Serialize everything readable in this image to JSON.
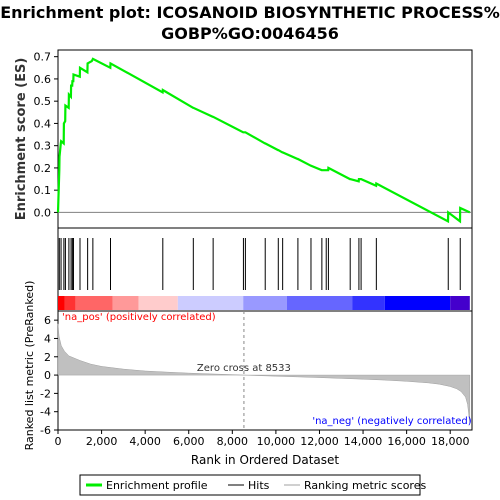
{
  "title_lines": [
    "Enrichment plot: ICOSANOID BIOSYNTHETIC PROCESS%",
    "GOBP%GO:0046456"
  ],
  "chart_data": {
    "type": "line",
    "x_label": "Rank in Ordered Dataset",
    "x_ticks": [
      0,
      2000,
      4000,
      6000,
      8000,
      10000,
      12000,
      14000,
      16000,
      18000
    ],
    "x_tick_labels": [
      "0",
      "2,000",
      "4,000",
      "6,000",
      "8,000",
      "10,000",
      "12,000",
      "14,000",
      "16,000",
      "18,000"
    ],
    "x_range": [
      0,
      19000
    ],
    "enrichment": {
      "ylabel": "Enrichment score (ES)",
      "ylim": [
        -0.07,
        0.73
      ],
      "y_ticks": [
        0.0,
        0.1,
        0.2,
        0.3,
        0.4,
        0.5,
        0.6,
        0.7
      ],
      "y_tick_labels": [
        "0.0",
        "0.1",
        "0.2",
        "0.3",
        "0.4",
        "0.5",
        "0.6",
        "0.7"
      ],
      "color": "#00ee00",
      "x": [
        0,
        60,
        70,
        130,
        140,
        260,
        270,
        330,
        340,
        490,
        500,
        590,
        600,
        650,
        660,
        700,
        710,
        1000,
        1010,
        1350,
        1360,
        1550,
        1600,
        2400,
        2410,
        4800,
        4810,
        6200,
        6210,
        7100,
        7120,
        8500,
        8510,
        8600,
        9500,
        9510,
        10100,
        10110,
        10300,
        10310,
        11000,
        11010,
        11600,
        11610,
        12100,
        12110,
        12300,
        12310,
        12400,
        12410,
        13400,
        13410,
        13800,
        13810,
        13900,
        13910,
        14600,
        14610,
        17900,
        17910,
        18450,
        18460,
        18900
      ],
      "y": [
        0.0,
        0.19,
        0.25,
        0.31,
        0.32,
        0.31,
        0.4,
        0.41,
        0.48,
        0.47,
        0.53,
        0.52,
        0.57,
        0.57,
        0.59,
        0.59,
        0.62,
        0.61,
        0.65,
        0.63,
        0.67,
        0.68,
        0.69,
        0.65,
        0.67,
        0.54,
        0.55,
        0.47,
        0.47,
        0.43,
        0.43,
        0.36,
        0.36,
        0.36,
        0.31,
        0.31,
        0.28,
        0.28,
        0.27,
        0.27,
        0.24,
        0.24,
        0.21,
        0.21,
        0.19,
        0.19,
        0.19,
        0.19,
        0.19,
        0.2,
        0.15,
        0.15,
        0.14,
        0.15,
        0.15,
        0.15,
        0.12,
        0.13,
        -0.04,
        0.0,
        -0.04,
        0.02,
        0.0
      ]
    },
    "hits": {
      "legend_label": "Hits",
      "color": "#000000",
      "x": [
        60,
        140,
        270,
        340,
        500,
        600,
        660,
        710,
        1010,
        1360,
        1600,
        2410,
        4810,
        6210,
        7120,
        8510,
        8600,
        9510,
        10110,
        10310,
        11010,
        11610,
        12110,
        12310,
        12410,
        13410,
        13810,
        13910,
        14610,
        17910,
        18460
      ]
    },
    "heatmap_band": {
      "colors": [
        "#ff0000",
        "#ff3333",
        "#ff6666",
        "#ff9999",
        "#ffcccc",
        "#ccccff",
        "#9999ff",
        "#6666ff",
        "#3333ff",
        "#0000ff",
        "#4400cc"
      ],
      "segment_ends": [
        300,
        800,
        2500,
        3700,
        5500,
        8500,
        10500,
        13500,
        15000,
        18000,
        18900
      ]
    },
    "ranked_metric": {
      "ylabel": "Ranked list metric (PreRanked)",
      "ylim": [
        -6,
        7
      ],
      "y_ticks": [
        -6,
        -4,
        -2,
        0,
        2,
        4,
        6
      ],
      "y_tick_labels": [
        "-6",
        "-4",
        "-2",
        "0",
        "2",
        "4",
        "6"
      ],
      "x": [
        0,
        50,
        150,
        300,
        500,
        1000,
        1500,
        2000,
        3000,
        4000,
        5000,
        6000,
        7000,
        8000,
        8533,
        9000,
        10000,
        11000,
        12000,
        13000,
        14000,
        15000,
        16000,
        17000,
        17500,
        18000,
        18300,
        18500,
        18700,
        18800,
        18900
      ],
      "values": [
        5.6,
        4.2,
        3.2,
        2.6,
        2.1,
        1.6,
        1.2,
        0.95,
        0.65,
        0.45,
        0.32,
        0.22,
        0.13,
        0.05,
        0.0,
        -0.05,
        -0.12,
        -0.2,
        -0.28,
        -0.36,
        -0.45,
        -0.55,
        -0.68,
        -0.85,
        -1.0,
        -1.25,
        -1.5,
        -1.8,
        -2.4,
        -3.2,
        -5.3
      ],
      "fill_color": "#c0c0c0",
      "zero_cross_label": "Zero cross at 8533",
      "zero_cross_x": 8533,
      "pos_label": "'na_pos' (positively correlated)",
      "pos_color": "#ff0000",
      "neg_label": "'na_neg' (negatively correlated)",
      "neg_color": "#0000ff"
    },
    "legend": {
      "position": "bottom",
      "items": [
        {
          "label": "Enrichment profile",
          "color": "#00ee00"
        },
        {
          "label": "Hits",
          "color": "#808080"
        },
        {
          "label": "Ranking metric scores",
          "color": "#d0d0d0"
        }
      ]
    }
  }
}
